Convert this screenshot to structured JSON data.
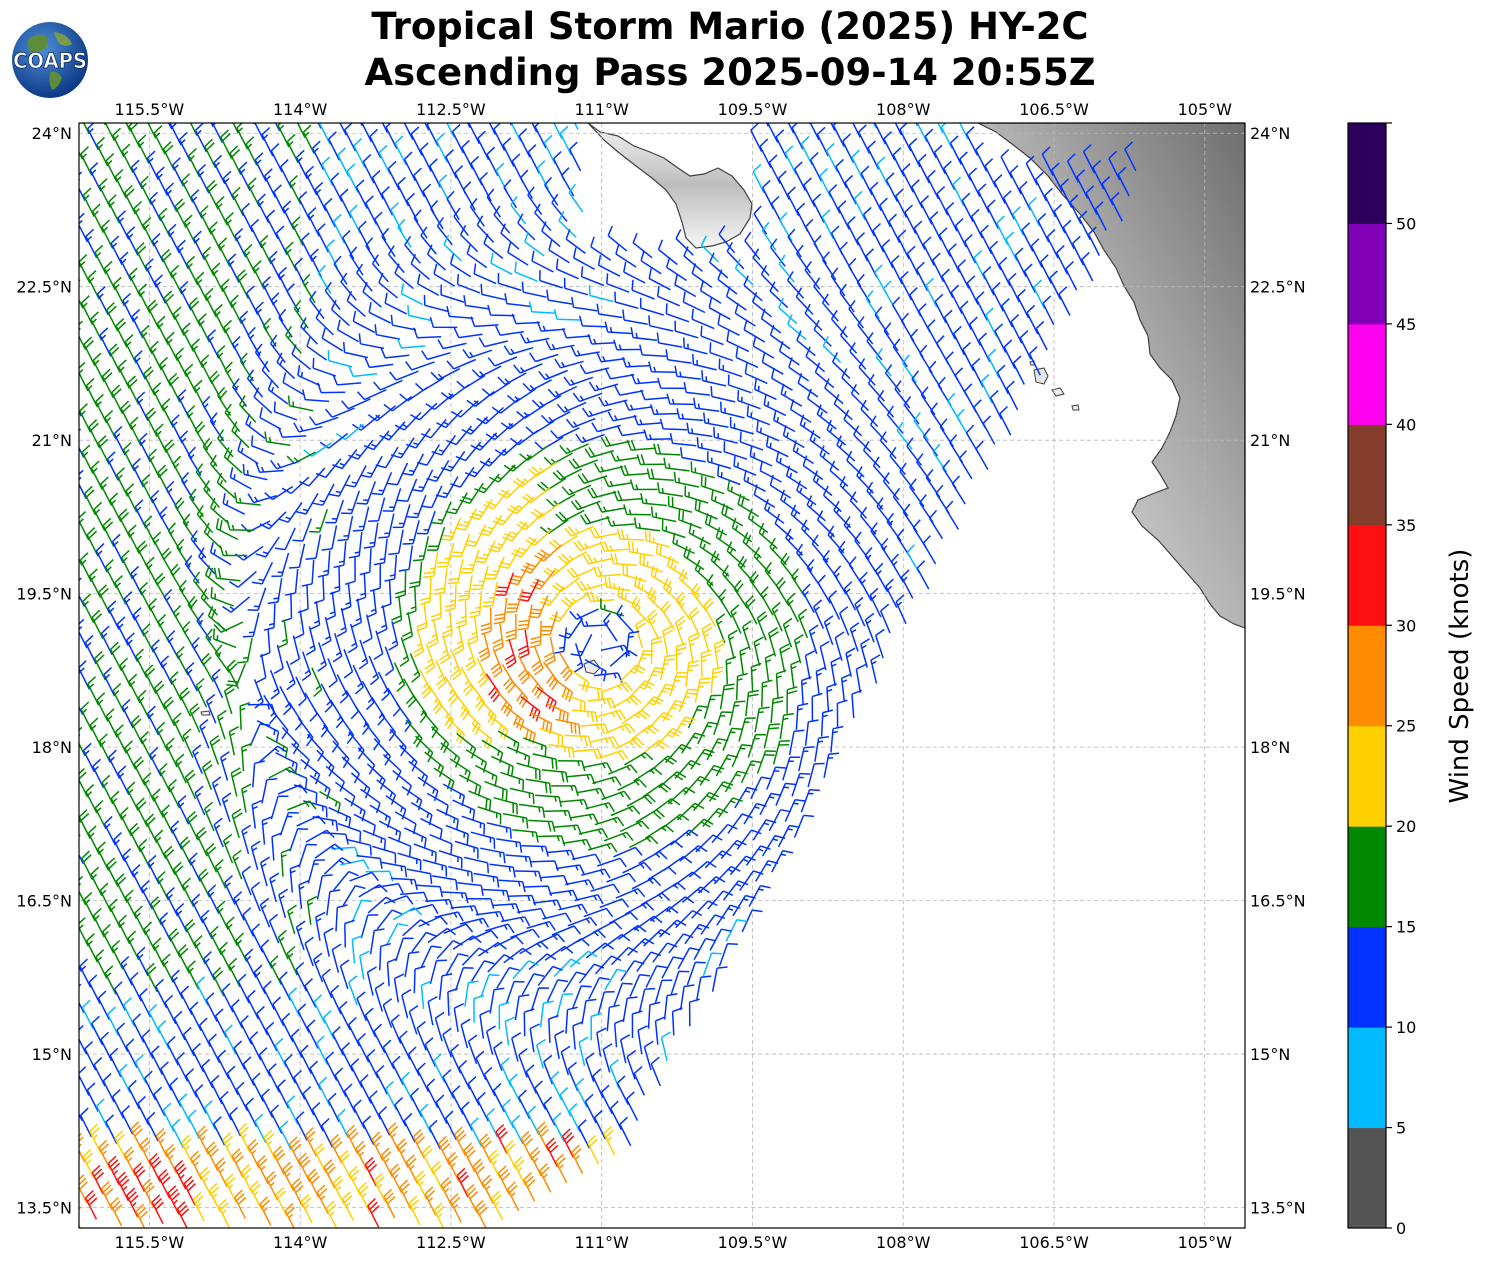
{
  "title": {
    "line1": "Tropical Storm Mario (2025) HY-2C",
    "line2": "Ascending Pass 2025-09-14 20:55Z"
  },
  "logo": {
    "text": "COAPS"
  },
  "map": {
    "lon_range": [
      -116.2,
      -104.6
    ],
    "lat_range": [
      13.3,
      24.1
    ],
    "lon_ticks": [
      {
        "value": -115.5,
        "label": "115.5°W"
      },
      {
        "value": -114,
        "label": "114°W"
      },
      {
        "value": -112.5,
        "label": "112.5°W"
      },
      {
        "value": -111,
        "label": "111°W"
      },
      {
        "value": -109.5,
        "label": "109.5°W"
      },
      {
        "value": -108,
        "label": "108°W"
      },
      {
        "value": -106.5,
        "label": "106.5°W"
      },
      {
        "value": -105,
        "label": "105°W"
      }
    ],
    "lat_ticks": [
      {
        "value": 24,
        "label": "24°N"
      },
      {
        "value": 22.5,
        "label": "22.5°N"
      },
      {
        "value": 21,
        "label": "21°N"
      },
      {
        "value": 19.5,
        "label": "19.5°N"
      },
      {
        "value": 18,
        "label": "18°N"
      },
      {
        "value": 16.5,
        "label": "16.5°N"
      },
      {
        "value": 15,
        "label": "15°N"
      },
      {
        "value": 13.5,
        "label": "13.5°N"
      }
    ],
    "gridlines": true,
    "storm_center": {
      "lon": -111.0,
      "lat": 19.0
    }
  },
  "colorbar": {
    "label": "Wind Speed (knots)",
    "ticks": [
      "0",
      "5",
      "10",
      "15",
      "20",
      "25",
      "30",
      "35",
      "40",
      "45",
      "50"
    ],
    "colors": [
      "#555555",
      "#00bbff",
      "#0033ff",
      "#008800",
      "#ffd000",
      "#ff8c00",
      "#ff1010",
      "#843c2c",
      "#ff00ee",
      "#8000b8",
      "#2e005e"
    ]
  }
}
